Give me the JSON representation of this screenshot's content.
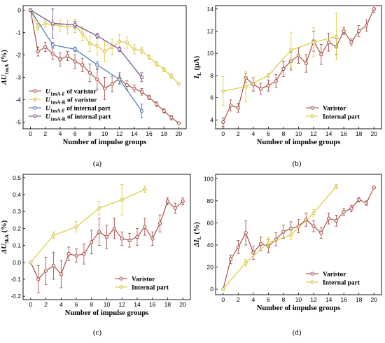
{
  "colors": {
    "red": "#a0413a",
    "yellow": "#d9c72a",
    "blue": "#2f6db5",
    "purple": "#6a3a8c"
  },
  "chart_data": [
    {
      "panel": "(a)",
      "type": "line",
      "xlabel": "Number of impulse groups",
      "ylabel_html": [
        "ΔU",
        "1mA",
        " (%)"
      ],
      "xlim": [
        -1,
        21
      ],
      "ylim": [
        -5.3,
        0.2
      ],
      "xticks": [
        0,
        2,
        4,
        6,
        8,
        10,
        12,
        14,
        16,
        18,
        20
      ],
      "yticks": [
        0,
        -1,
        -2,
        -3,
        -4,
        -5
      ],
      "legend_position": "bottom-left",
      "series": [
        {
          "name": "U1mA-F of varistor",
          "name_main": "U",
          "name_sub": "1mA-F",
          "name_rest": " of varistor",
          "color": "red",
          "x": [
            0,
            1,
            2,
            3,
            4,
            5,
            6,
            7,
            8,
            9,
            10,
            11,
            12,
            13,
            14,
            15,
            16,
            17,
            18,
            19,
            20
          ],
          "y": [
            0,
            -1.85,
            -1.65,
            -1.95,
            -2.2,
            -2.05,
            -2.3,
            -2.45,
            -2.8,
            -3.1,
            -3.5,
            -3.3,
            -3.05,
            -3.35,
            -3.5,
            -3.65,
            -3.9,
            -4.2,
            -4.5,
            -4.8,
            -5.05
          ],
          "err": [
            0,
            0.2,
            0.2,
            0.25,
            0.3,
            0.2,
            0.3,
            0.3,
            0.4,
            0.45,
            0.5,
            0.35,
            0.25,
            0.2,
            0.15,
            0.15,
            0.1,
            0.1,
            0.1,
            0.1,
            0.05
          ]
        },
        {
          "name": "U1mA-R of varistor",
          "name_main": "U",
          "name_sub": "1mA-R",
          "name_rest": " of varistor",
          "color": "yellow",
          "x": [
            0,
            1,
            2,
            3,
            4,
            5,
            6,
            7,
            8,
            9,
            10,
            11,
            12,
            13,
            14,
            15,
            16,
            17,
            18,
            19,
            20
          ],
          "y": [
            0,
            -0.75,
            -0.6,
            -0.65,
            -0.7,
            -0.75,
            -0.7,
            -1.05,
            -1.5,
            -1.6,
            -1.85,
            -1.65,
            -1.4,
            -1.45,
            -1.75,
            -1.8,
            -2.1,
            -2.4,
            -2.65,
            -2.95,
            -3.3
          ],
          "err": [
            0,
            0.15,
            0.15,
            0.2,
            0.25,
            0.3,
            0.3,
            0.3,
            0.35,
            0.4,
            0.45,
            0.35,
            0.3,
            0.25,
            0.2,
            0.15,
            0.1,
            0.1,
            0.1,
            0.1,
            0.05
          ]
        },
        {
          "name": "U1mA-F of internal part",
          "name_main": "U",
          "name_sub": "1mA-F",
          "name_rest": " of internal part",
          "color": "blue",
          "x": [
            0,
            3,
            6,
            9,
            12,
            15
          ],
          "y": [
            0,
            -1.55,
            -1.75,
            -2.45,
            -3.1,
            -4.5
          ],
          "err": [
            0,
            0.1,
            0.1,
            0.15,
            0.2,
            0.3
          ]
        },
        {
          "name": "U1mA-R of internal part",
          "name_main": "U",
          "name_sub": "1mA-R",
          "name_rest": " of internal part",
          "color": "purple",
          "x": [
            0,
            3,
            6,
            9,
            12,
            15
          ],
          "y": [
            0,
            -0.6,
            -0.65,
            -1.15,
            -1.75,
            -3.0
          ],
          "err": [
            0,
            0.65,
            0.15,
            0.1,
            0.1,
            0.2
          ]
        }
      ]
    },
    {
      "panel": "(b)",
      "type": "line",
      "xlabel": "Number of impulse groups",
      "ylabel_html": [
        "I",
        "L",
        " (μA)"
      ],
      "xlim": [
        -1,
        21
      ],
      "ylim": [
        3.2,
        14.3
      ],
      "xticks": [
        0,
        2,
        4,
        6,
        8,
        10,
        12,
        14,
        16,
        18,
        20
      ],
      "yticks": [
        4,
        6,
        8,
        10,
        12,
        14
      ],
      "legend_position": "bottom-right",
      "series": [
        {
          "name": "Varistor",
          "color": "red",
          "x": [
            0,
            1,
            2,
            3,
            4,
            5,
            6,
            7,
            8,
            9,
            10,
            11,
            12,
            13,
            14,
            15,
            16,
            17,
            18,
            19,
            20
          ],
          "y": [
            3.8,
            5.3,
            5.1,
            7.8,
            7.2,
            6.8,
            7.1,
            7.5,
            8.6,
            9.3,
            9.8,
            9.1,
            11.1,
            9.9,
            11.0,
            10.6,
            12.0,
            11.0,
            12.0,
            12.5,
            14.0
          ],
          "err": [
            0.4,
            0.5,
            0.4,
            0.4,
            0.6,
            0.5,
            0.5,
            0.6,
            0.7,
            0.8,
            0.7,
            0.8,
            0.9,
            0.9,
            0.8,
            0.7,
            0.3,
            0.3,
            0.5,
            0.5,
            0.3
          ]
        },
        {
          "name": "Internal part",
          "color": "yellow",
          "x": [
            0,
            3,
            6,
            9,
            12,
            15
          ],
          "y": [
            6.6,
            7.0,
            8.0,
            10.3,
            11.0,
            11.5
          ],
          "err": [
            1.3,
            1.4,
            0.2,
            1.6,
            1.3,
            2.1
          ]
        }
      ]
    },
    {
      "panel": "(c)",
      "type": "line",
      "xlabel": "Number of impulse groups",
      "ylabel_html": [
        "ΔU",
        "5kA",
        " (%)"
      ],
      "xlim": [
        -1,
        21
      ],
      "ylim": [
        -0.22,
        0.52
      ],
      "xticks": [
        0,
        2,
        4,
        6,
        8,
        10,
        12,
        14,
        16,
        18,
        20
      ],
      "yticks": [
        0.5,
        0.4,
        0.3,
        0.2,
        0.1,
        0.0,
        -0.1,
        -0.2
      ],
      "ytick_labels": [
        "0.5",
        "0.4",
        "0.3",
        "0.2",
        "0.1",
        "0.0",
        "-0.1",
        "-0.2"
      ],
      "legend_position": "bottom-right",
      "series": [
        {
          "name": "Varistor",
          "color": "red",
          "x": [
            0,
            1,
            2,
            3,
            4,
            5,
            6,
            7,
            8,
            9,
            10,
            11,
            12,
            13,
            14,
            15,
            16,
            17,
            18,
            19,
            20
          ],
          "y": [
            0,
            -0.1,
            -0.05,
            -0.02,
            -0.07,
            0.05,
            0.04,
            0.05,
            0.12,
            0.18,
            0.15,
            0.2,
            0.14,
            0.13,
            0.15,
            0.21,
            0.14,
            0.23,
            0.36,
            0.32,
            0.36
          ],
          "err": [
            0,
            0.08,
            0.08,
            0.08,
            0.08,
            0.04,
            0.04,
            0.06,
            0.07,
            0.08,
            0.07,
            0.06,
            0.04,
            0.04,
            0.05,
            0.05,
            0.04,
            0.05,
            0.02,
            0.03,
            0.02
          ]
        },
        {
          "name": "Internal part",
          "color": "yellow",
          "x": [
            0,
            3,
            6,
            9,
            12,
            15
          ],
          "y": [
            0,
            0.16,
            0.21,
            0.32,
            0.37,
            0.43
          ],
          "err": [
            0,
            0.02,
            0.03,
            0.04,
            0.09,
            0.02
          ]
        }
      ]
    },
    {
      "panel": "(d)",
      "type": "line",
      "xlabel": "Number of impulse groups",
      "ylabel_html": [
        "ΔI",
        "L",
        " (%)"
      ],
      "xlim": [
        -1,
        21
      ],
      "ylim": [
        -5,
        104
      ],
      "xticks": [
        0,
        2,
        4,
        6,
        8,
        10,
        12,
        14,
        16,
        18,
        20
      ],
      "yticks": [
        0,
        20,
        40,
        60,
        80,
        100
      ],
      "legend_position": "bottom-right",
      "series": [
        {
          "name": "Varistor",
          "color": "red",
          "x": [
            0,
            1,
            2,
            3,
            4,
            5,
            6,
            7,
            8,
            9,
            10,
            11,
            12,
            13,
            14,
            15,
            16,
            17,
            18,
            19,
            20
          ],
          "y": [
            0,
            27,
            38,
            51,
            33,
            41,
            39,
            45,
            52,
            55,
            57,
            63,
            57,
            51,
            64,
            62,
            70,
            73,
            81,
            78,
            92
          ],
          "err": [
            0,
            4,
            6,
            11,
            6,
            6,
            6,
            6,
            6,
            6,
            6,
            6,
            5,
            5,
            5,
            5,
            3,
            3,
            2,
            2,
            1
          ]
        },
        {
          "name": "Internal part",
          "color": "yellow",
          "x": [
            0,
            3,
            6,
            9,
            12,
            15
          ],
          "y": [
            0,
            24,
            42,
            49,
            69,
            93
          ],
          "err": [
            0,
            3,
            5,
            4,
            3,
            2
          ]
        }
      ]
    }
  ]
}
